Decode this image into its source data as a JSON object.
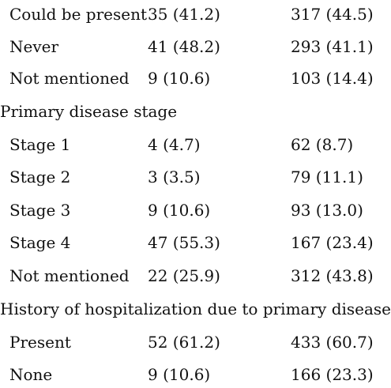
{
  "rows": [
    {
      "type": "row",
      "label": "Could be present",
      "col1": "35 (41.2)",
      "col2": "317 (44.5)"
    },
    {
      "type": "row",
      "label": "Never",
      "col1": "41 (48.2)",
      "col2": "293 (41.1)"
    },
    {
      "type": "row",
      "label": "Not mentioned",
      "col1": "9 (10.6)",
      "col2": "103 (14.4)"
    },
    {
      "type": "section",
      "label": "Primary disease stage"
    },
    {
      "type": "row",
      "label": "Stage 1",
      "col1": "4 (4.7)",
      "col2": "62 (8.7)"
    },
    {
      "type": "row",
      "label": "Stage 2",
      "col1": "3 (3.5)",
      "col2": "79 (11.1)"
    },
    {
      "type": "row",
      "label": "Stage 3",
      "col1": "9 (10.6)",
      "col2": "93 (13.0)"
    },
    {
      "type": "row",
      "label": "Stage 4",
      "col1": "47 (55.3)",
      "col2": "167 (23.4)"
    },
    {
      "type": "row",
      "label": "Not mentioned",
      "col1": "22 (25.9)",
      "col2": "312 (43.8)"
    },
    {
      "type": "section",
      "label": "History of hospitalization due to primary disease"
    },
    {
      "type": "row",
      "label": "Present",
      "col1": "52 (61.2)",
      "col2": "433 (60.7)"
    },
    {
      "type": "row",
      "label": "None",
      "col1": "9 (10.6)",
      "col2": "166 (23.3)"
    }
  ]
}
